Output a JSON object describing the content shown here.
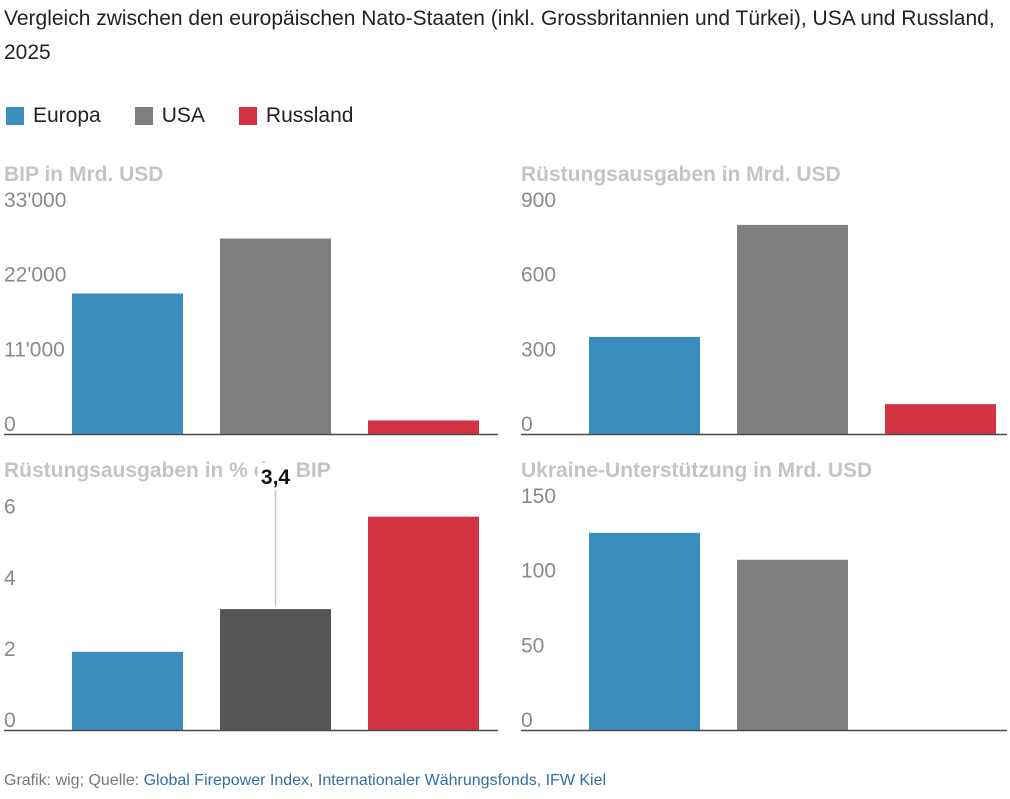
{
  "title": "Vergleich zwischen den europäischen Nato-Staaten (inkl. Grossbritannien und Türkei), USA und Russland, 2025",
  "legend": [
    {
      "label": "Europa",
      "color": "#3a8ebe"
    },
    {
      "label": "USA",
      "color": "#7f7f7f"
    },
    {
      "label": "Russland",
      "color": "#d33442"
    }
  ],
  "chart_data": [
    {
      "type": "bar",
      "title": "BIP in Mrd. USD",
      "categories": [
        "Europa",
        "USA",
        "Russland"
      ],
      "values": [
        20700,
        28800,
        2000
      ],
      "colors": [
        "#3a8ebe",
        "#7f7f7f",
        "#d33442"
      ],
      "ylim": [
        0,
        33000
      ],
      "yticks": [
        0,
        11000,
        22000,
        33000
      ],
      "ytick_labels": [
        "0",
        "11'000",
        "22'000",
        "33'000"
      ],
      "xlabel": "",
      "ylabel": ""
    },
    {
      "type": "bar",
      "title": "Rüstungsausgaben in Mrd. USD",
      "categories": [
        "Europa",
        "USA",
        "Russland"
      ],
      "values": [
        390,
        840,
        120
      ],
      "colors": [
        "#3a8ebe",
        "#7f7f7f",
        "#d33442"
      ],
      "ylim": [
        0,
        900
      ],
      "yticks": [
        0,
        300,
        600,
        900
      ],
      "ytick_labels": [
        "0",
        "300",
        "600",
        "900"
      ],
      "xlabel": "",
      "ylabel": ""
    },
    {
      "type": "bar",
      "title": "Rüstungsausgaben in % des BIP",
      "categories": [
        "Europa",
        "USA",
        "Russland"
      ],
      "values": [
        2.2,
        3.4,
        6.0
      ],
      "colors": [
        "#3a8ebe",
        "#555555",
        "#d33442"
      ],
      "ylim": [
        0,
        6.3
      ],
      "yticks": [
        0,
        2,
        4,
        6
      ],
      "ytick_labels": [
        "0",
        "2",
        "4",
        "6"
      ],
      "annotation": {
        "label": "3,4",
        "category_index": 1
      },
      "xlabel": "",
      "ylabel": ""
    },
    {
      "type": "bar",
      "title": "Ukraine-Unterstützung in Mrd. USD",
      "categories": [
        "Europa",
        "USA",
        "Russland"
      ],
      "values": [
        132,
        114,
        0
      ],
      "colors": [
        "#3a8ebe",
        "#7f7f7f",
        "#d33442"
      ],
      "ylim": [
        0,
        150
      ],
      "yticks": [
        0,
        50,
        100,
        150
      ],
      "ytick_labels": [
        "0",
        "50",
        "100",
        "150"
      ],
      "xlabel": "",
      "ylabel": ""
    }
  ],
  "footer": {
    "prefix": "Grafik: wig; Quelle: ",
    "sources": [
      "Global Firepower Index",
      "Internationaler Währungsfonds",
      "IFW Kiel"
    ],
    "separator": ", "
  }
}
